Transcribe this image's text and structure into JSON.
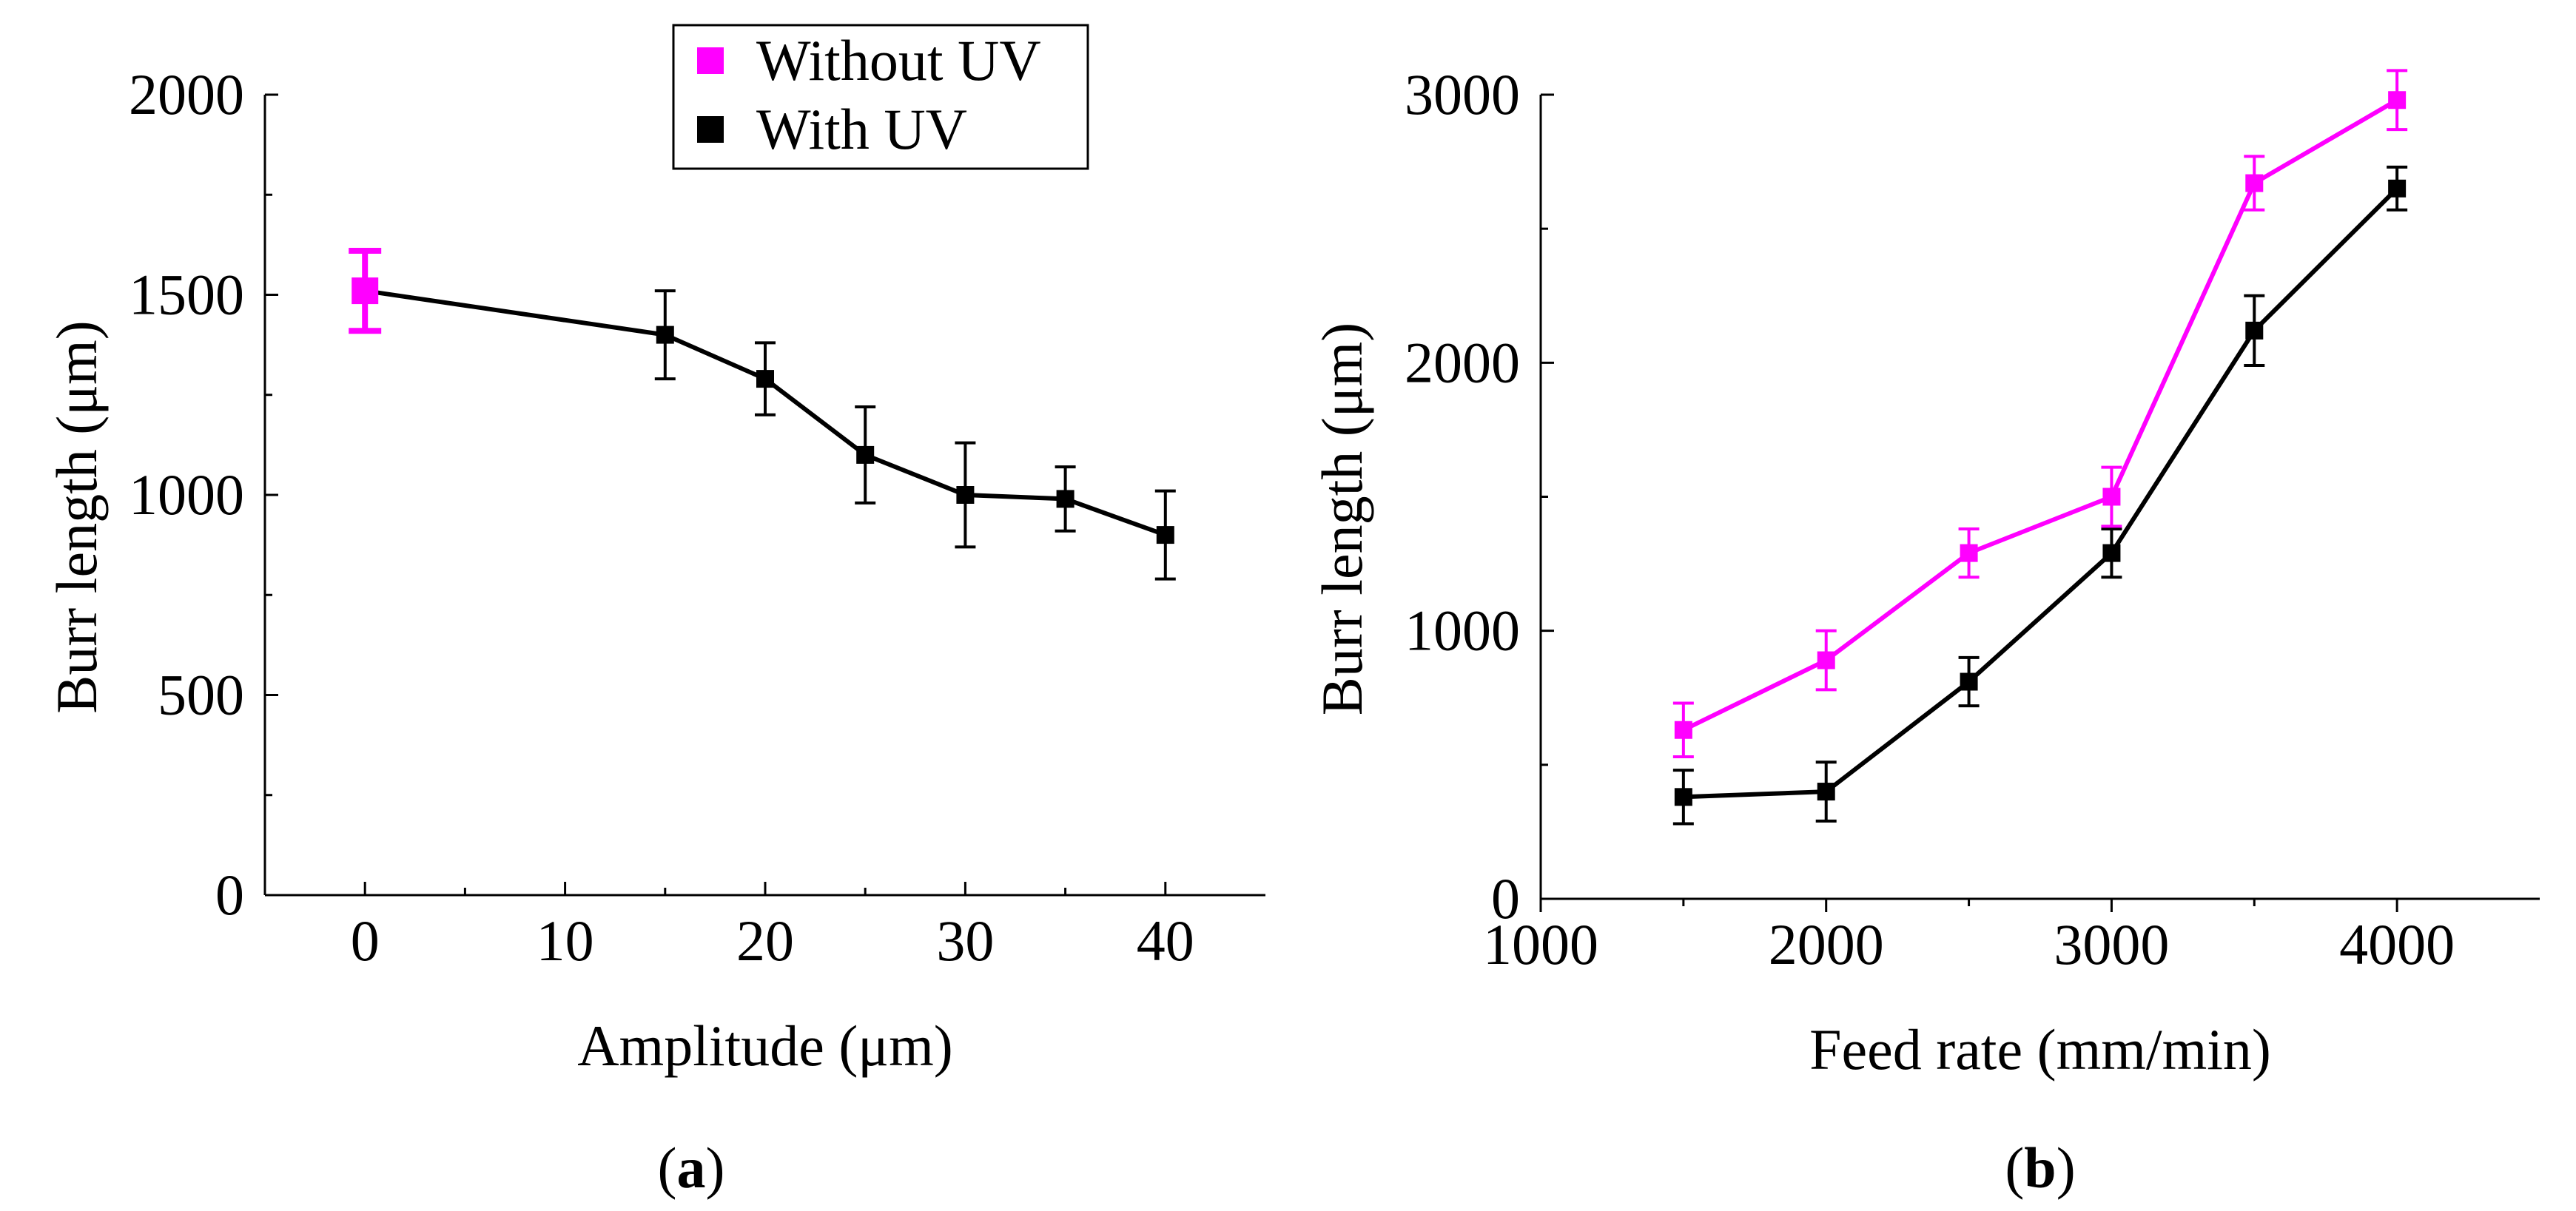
{
  "colors": {
    "without_uv": "#ff00ff",
    "with_uv": "#000000"
  },
  "legend": {
    "items": [
      "Without UV",
      "With UV"
    ],
    "placement": "top-left"
  },
  "chart_data": [
    {
      "type": "line",
      "panel_label": "(a)",
      "panel_letter": "a",
      "xlabel": "Amplitude (μm)",
      "ylabel": "Burr length (μm)",
      "xlim": [
        -5,
        45
      ],
      "ylim": [
        0,
        2000
      ],
      "xticks": [
        "0",
        "10",
        "20",
        "30",
        "40"
      ],
      "yticks": [
        "0",
        "500",
        "1000",
        "1500",
        "2000"
      ],
      "series": [
        {
          "name": "Without UV",
          "x": [
            0
          ],
          "values": [
            1510
          ],
          "errors": [
            100
          ]
        },
        {
          "name": "With UV",
          "x": [
            0,
            15,
            20,
            25,
            30,
            35,
            40
          ],
          "values": [
            1510,
            1400,
            1290,
            1100,
            1000,
            990,
            900
          ],
          "errors": [
            0,
            110,
            90,
            120,
            130,
            80,
            110
          ]
        }
      ]
    },
    {
      "type": "line",
      "panel_label": "(b)",
      "panel_letter": "b",
      "xlabel": "Feed rate (mm/min)",
      "ylabel": "Burr length (μm)",
      "xlim": [
        1000,
        4500
      ],
      "ylim": [
        0,
        3000
      ],
      "xticks": [
        "1000",
        "2000",
        "3000",
        "4000"
      ],
      "yticks": [
        "0",
        "1000",
        "2000",
        "3000"
      ],
      "series": [
        {
          "name": "Without UV",
          "x": [
            1500,
            2000,
            2500,
            3000,
            3500,
            4000
          ],
          "values": [
            630,
            890,
            1290,
            1500,
            2670,
            2980
          ],
          "errors": [
            100,
            110,
            90,
            110,
            100,
            110
          ]
        },
        {
          "name": "With UV",
          "x": [
            1500,
            2000,
            2500,
            3000,
            3500,
            4000
          ],
          "values": [
            380,
            400,
            810,
            1290,
            2120,
            2650
          ],
          "errors": [
            100,
            110,
            90,
            90,
            130,
            80
          ]
        }
      ]
    }
  ]
}
